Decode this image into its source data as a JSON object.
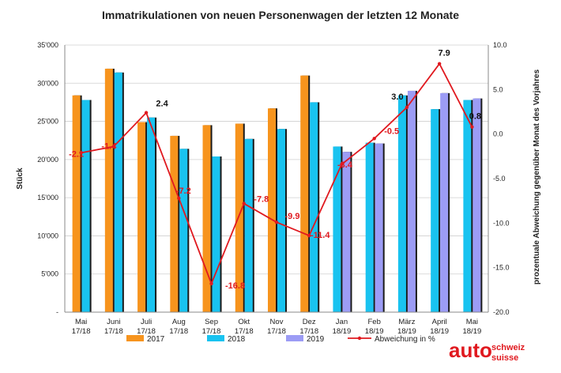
{
  "chart_data": {
    "type": "bar",
    "title": "Immatrikulationen von neuen Personenwagen der letzten 12 Monate",
    "ylabel": "Stück",
    "y2label": "prozentuale Abweichung gegenüber Monat des Vorjahres",
    "ylim": [
      0,
      35000
    ],
    "y2lim": [
      -20,
      10
    ],
    "y_ticks": [
      "-",
      "5'000",
      "10'000",
      "15'000",
      "20'000",
      "25'000",
      "30'000",
      "35'000"
    ],
    "y2_ticks": [
      "-20.0",
      "-15.0",
      "-10.0",
      "-5.0",
      "0.0",
      "5.0",
      "10.0"
    ],
    "grid": true,
    "legend_position": "bottom",
    "categories": [
      [
        "Mai",
        "17/18"
      ],
      [
        "Juni",
        "17/18"
      ],
      [
        "Juli",
        "17/18"
      ],
      [
        "Aug",
        "17/18"
      ],
      [
        "Sep",
        "17/18"
      ],
      [
        "Okt",
        "17/18"
      ],
      [
        "Nov",
        "17/18"
      ],
      [
        "Dez",
        "17/18"
      ],
      [
        "Jan",
        "18/19"
      ],
      [
        "Feb",
        "18/19"
      ],
      [
        "März",
        "18/19"
      ],
      [
        "April",
        "18/19"
      ],
      [
        "Mai",
        "18/19"
      ]
    ],
    "series": [
      {
        "name": "2017",
        "type": "bar",
        "color": "#f7941d",
        "values": [
          28400,
          31900,
          24900,
          23100,
          24500,
          24700,
          26700,
          31000,
          null,
          null,
          null,
          null,
          null
        ]
      },
      {
        "name": "2018",
        "type": "bar",
        "color": "#19c3f0",
        "values": [
          27800,
          31400,
          25500,
          21400,
          20400,
          22700,
          24000,
          27500,
          21700,
          22200,
          28400,
          26600,
          27800
        ]
      },
      {
        "name": "2019",
        "type": "bar",
        "color": "#9c9cf5",
        "values": [
          null,
          null,
          null,
          null,
          null,
          null,
          null,
          null,
          21000,
          22100,
          29000,
          28700,
          28000
        ]
      },
      {
        "name": "Abweichung in %",
        "type": "line",
        "axis": "right",
        "color": "#e0191f",
        "values": [
          -2.1,
          -1.4,
          2.4,
          -7.2,
          -16.8,
          -7.8,
          -9.9,
          -11.4,
          -3.4,
          -0.5,
          3.0,
          7.9,
          0.8
        ],
        "labels": [
          "-2.1",
          "-1.4",
          "2.4",
          "-7.2",
          "-16.8",
          "-7.8",
          "-9.9",
          "-11.4",
          "-3.4",
          "-0.5",
          "3.0",
          "7.9",
          "0.8"
        ]
      }
    ]
  },
  "logo": {
    "main": "auto",
    "line1": "schweiz",
    "line2": "suisse"
  }
}
